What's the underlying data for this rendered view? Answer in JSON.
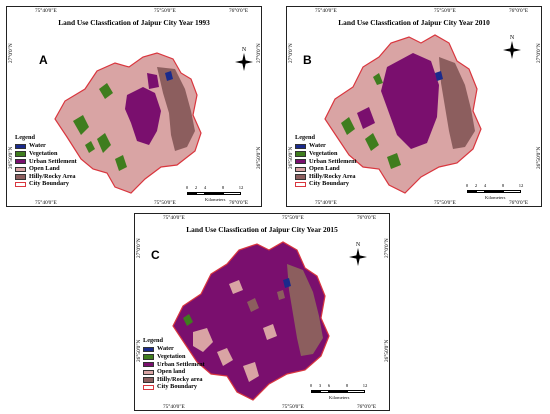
{
  "figure": {
    "legend_title": "Legend",
    "colors": {
      "water": "#1a2a8c",
      "vegetation": "#3f7d1e",
      "urban": "#7a0f6e",
      "open_land": "#d9a4a4",
      "hilly": "#8c5e5e",
      "boundary": "#d9363e"
    },
    "scale_unit": "Kilometers",
    "north_label": "N"
  },
  "panels": [
    {
      "letter": "A",
      "title": "Land Use Classfication of Jaipur City Year 1993",
      "coords_top": [
        "75°40'0\"E",
        "75°50'0\"E",
        "76°0'0\"E"
      ],
      "coords_bottom": [
        "75°40'0\"E",
        "75°50'0\"E",
        "76°0'0\"E"
      ],
      "coords_left": [
        "27°0'0\"N",
        "26°50'0\"N"
      ],
      "coords_right": [
        "27°0'0\"N",
        "26°50'0\"N"
      ],
      "legend": [
        "Water",
        "Vegetation",
        "Urban Settlement",
        "Open Land",
        "Hilly/Rocky Area",
        "City Boundary"
      ],
      "scale_ticks": [
        "0",
        "2",
        "4",
        "8",
        "12"
      ]
    },
    {
      "letter": "B",
      "title": "Land Use Classfication of Jaipur City Year 2010",
      "coords_top": [
        "75°40'0\"E",
        "75°50'0\"E",
        "76°0'0\"E"
      ],
      "coords_bottom": [
        "75°40'0\"E",
        "75°50'0\"E",
        "76°0'0\"E"
      ],
      "coords_left": [
        "27°0'0\"N",
        "26°50'0\"N"
      ],
      "coords_right": [
        "27°0'0\"N",
        "26°50'0\"N"
      ],
      "legend": [
        "Water",
        "Vegetation",
        "Urban Settlement",
        "Open Land",
        "Hilly/Rocky Area",
        "City Boundary"
      ],
      "scale_ticks": [
        "0",
        "2",
        "4",
        "8",
        "12"
      ]
    },
    {
      "letter": "C",
      "title": "Land Use Classfication of Jaipur City Year 2015",
      "coords_top": [
        "75°40'0\"E",
        "75°50'0\"E",
        "76°0'0\"E"
      ],
      "coords_bottom": [
        "75°40'0\"E",
        "75°50'0\"E",
        "76°0'0\"E"
      ],
      "coords_left": [
        "27°0'0\"N",
        "26°50'0\"N"
      ],
      "coords_right": [
        "27°0'0\"N",
        "26°50'0\"N"
      ],
      "legend": [
        "Water",
        "Vegetation",
        "Urban Settlement",
        "Open land",
        "Hilly/Rocky area",
        "City Boundary"
      ],
      "scale_ticks": [
        "0",
        "3",
        "6",
        "8",
        "12"
      ]
    }
  ]
}
